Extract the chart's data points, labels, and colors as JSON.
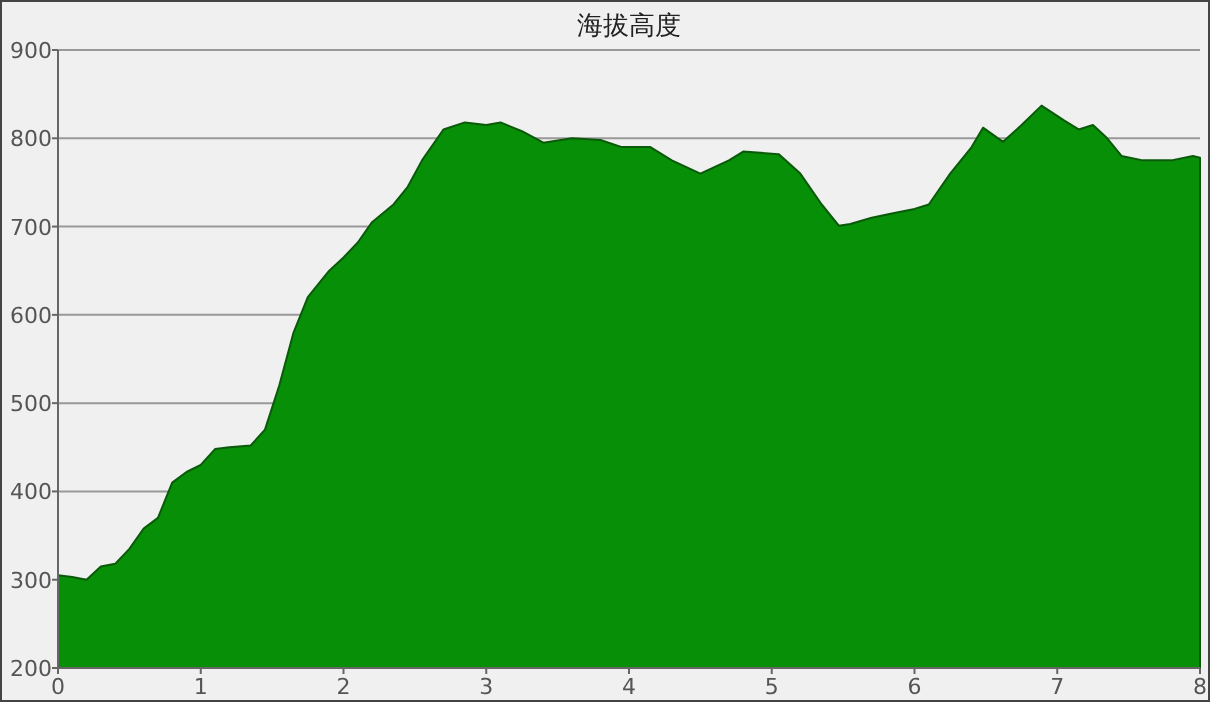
{
  "chart_data": {
    "type": "area",
    "title": "海拔高度",
    "color": "#078f07",
    "grid": "y",
    "xlim": [
      0,
      8
    ],
    "xticks": [
      0,
      1,
      2,
      3,
      4,
      5,
      6,
      7,
      8
    ],
    "ylim": [
      200,
      900
    ],
    "yticks": [
      200,
      300,
      400,
      500,
      600,
      700,
      800,
      900
    ],
    "x": [
      0,
      0.1,
      0.2,
      0.3,
      0.4,
      0.5,
      0.6,
      0.7,
      0.8,
      0.9,
      1.0,
      1.1,
      1.2,
      1.35,
      1.45,
      1.55,
      1.65,
      1.75,
      1.9,
      2.0,
      2.1,
      2.2,
      2.35,
      2.45,
      2.55,
      2.7,
      2.85,
      3.0,
      3.1,
      3.25,
      3.4,
      3.6,
      3.8,
      3.95,
      4.15,
      4.3,
      4.5,
      4.7,
      4.8,
      5.05,
      5.2,
      5.35,
      5.47,
      5.55,
      5.7,
      5.85,
      6.0,
      6.1,
      6.25,
      6.4,
      6.48,
      6.62,
      6.75,
      6.89,
      7.05,
      7.15,
      7.25,
      7.35,
      7.45,
      7.6,
      7.8,
      7.95,
      8.0
    ],
    "values": [
      305,
      303,
      300,
      315,
      318,
      335,
      358,
      370,
      410,
      422,
      430,
      448,
      450,
      452,
      470,
      520,
      580,
      620,
      650,
      665,
      682,
      705,
      725,
      745,
      775,
      810,
      818,
      815,
      818,
      808,
      795,
      800,
      798,
      790,
      790,
      775,
      760,
      775,
      785,
      782,
      760,
      725,
      701,
      703,
      710,
      715,
      720,
      725,
      760,
      790,
      812,
      796,
      815,
      837,
      820,
      810,
      815,
      800,
      780,
      775,
      775,
      780,
      778
    ]
  }
}
